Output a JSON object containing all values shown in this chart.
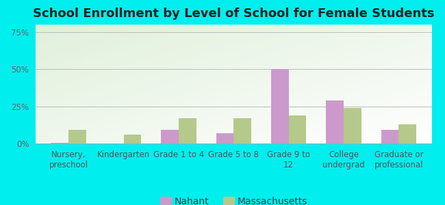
{
  "title": "School Enrollment by Level of School for Female Students",
  "categories": [
    "Nursery,\npreschool",
    "Kindergarten",
    "Grade 1 to 4",
    "Grade 5 to 8",
    "Grade 9 to\n12",
    "College\nundergrad",
    "Graduate or\nprofessional"
  ],
  "nahant": [
    0.5,
    0,
    9,
    7,
    50,
    29,
    9
  ],
  "massachusetts": [
    9,
    6,
    17,
    17,
    19,
    24,
    13
  ],
  "nahant_color": "#cc99cc",
  "massachusetts_color": "#b5c98a",
  "background_color": "#00eeee",
  "plot_bg": "#e8f2e0",
  "ylim": [
    0,
    80
  ],
  "yticks": [
    0,
    25,
    50,
    75
  ],
  "ytick_labels": [
    "0%",
    "25%",
    "50%",
    "75%"
  ],
  "legend_labels": [
    "Nahant",
    "Massachusetts"
  ],
  "title_fontsize": 13,
  "tick_fontsize": 8.5,
  "legend_fontsize": 10,
  "bar_width": 0.32
}
